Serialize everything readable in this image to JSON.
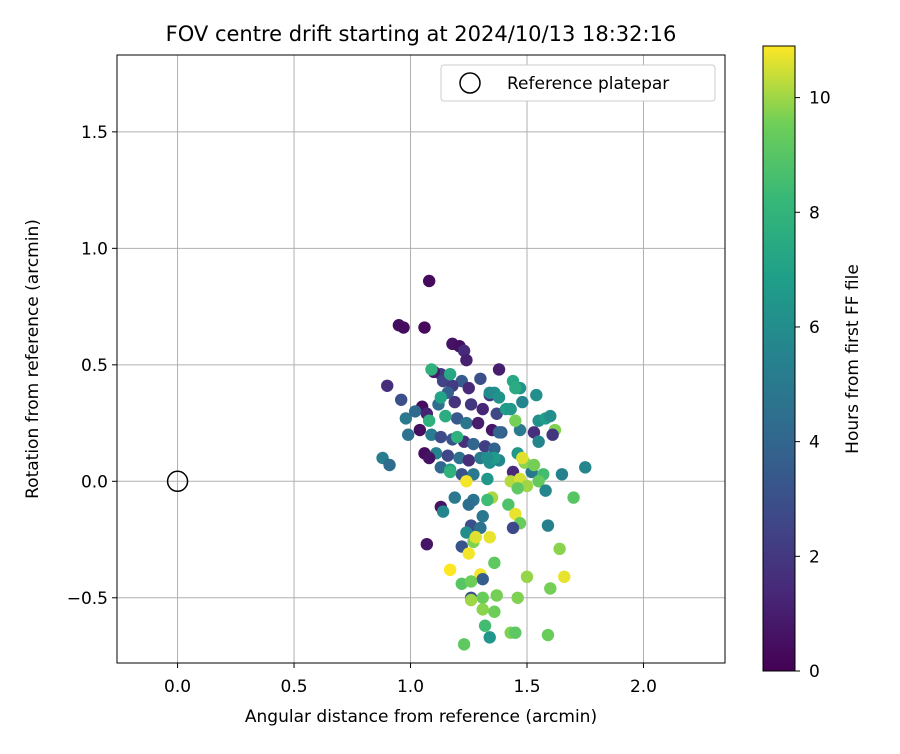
{
  "chart_data": {
    "type": "scatter",
    "title": "FOV centre drift starting at 2024/10/13 18:32:16",
    "xlabel": "Angular distance from reference (arcmin)",
    "ylabel": "Rotation from reference (arcmin)",
    "xlim": [
      -0.26,
      2.35
    ],
    "ylim": [
      -0.78,
      1.83
    ],
    "xticks": [
      0.0,
      0.5,
      1.0,
      1.5,
      2.0
    ],
    "xtick_labels": [
      "0.0",
      "0.5",
      "1.0",
      "1.5",
      "2.0"
    ],
    "yticks": [
      -0.5,
      0.0,
      0.5,
      1.0,
      1.5
    ],
    "ytick_labels": [
      "−0.5",
      "0.0",
      "0.5",
      "1.0",
      "1.5"
    ],
    "grid": true,
    "legend": {
      "position": "top-right",
      "entries": [
        "Reference platepar"
      ]
    },
    "reference_point": {
      "name": "Reference platepar",
      "x": 0.0,
      "y": 0.0
    },
    "colorbar": {
      "label": "Hours from first FF file",
      "range": [
        0,
        10.9
      ],
      "ticks": [
        0,
        2,
        4,
        6,
        8,
        10
      ],
      "tick_labels": [
        "0",
        "2",
        "4",
        "6",
        "8",
        "10"
      ],
      "colormap": "viridis"
    },
    "points": [
      [
        1.08,
        0.86,
        0.3
      ],
      [
        0.95,
        0.67,
        0.5
      ],
      [
        0.97,
        0.66,
        0.4
      ],
      [
        1.06,
        0.66,
        0.3
      ],
      [
        1.18,
        0.59,
        0.6
      ],
      [
        1.21,
        0.58,
        0.5
      ],
      [
        1.23,
        0.56,
        1.5
      ],
      [
        1.24,
        0.52,
        1.1
      ],
      [
        1.38,
        0.48,
        1.0
      ],
      [
        1.13,
        0.46,
        2.0
      ],
      [
        0.9,
        0.41,
        1.6
      ],
      [
        1.1,
        0.47,
        0.8
      ],
      [
        1.14,
        0.43,
        2.5
      ],
      [
        1.22,
        0.43,
        3.5
      ],
      [
        1.3,
        0.44,
        3.0
      ],
      [
        1.18,
        0.41,
        2.2
      ],
      [
        1.25,
        0.4,
        1.4
      ],
      [
        1.34,
        0.37,
        1.9
      ],
      [
        1.16,
        0.38,
        3.8
      ],
      [
        1.05,
        0.32,
        0.4
      ],
      [
        1.12,
        0.33,
        4.4
      ],
      [
        1.19,
        0.34,
        1.8
      ],
      [
        1.26,
        0.33,
        2.0
      ],
      [
        1.31,
        0.31,
        1.3
      ],
      [
        1.37,
        0.29,
        2.6
      ],
      [
        0.96,
        0.35,
        3.0
      ],
      [
        0.98,
        0.27,
        5.0
      ],
      [
        1.02,
        0.3,
        4.2
      ],
      [
        1.07,
        0.29,
        1.2
      ],
      [
        1.15,
        0.28,
        6.6
      ],
      [
        1.2,
        0.27,
        3.4
      ],
      [
        1.24,
        0.25,
        4.8
      ],
      [
        1.29,
        0.25,
        1.0
      ],
      [
        1.35,
        0.22,
        0.7
      ],
      [
        1.39,
        0.21,
        3.6
      ],
      [
        0.99,
        0.2,
        4.6
      ],
      [
        1.04,
        0.22,
        0.5
      ],
      [
        1.09,
        0.2,
        5.2
      ],
      [
        1.13,
        0.19,
        2.8
      ],
      [
        1.18,
        0.18,
        3.2
      ],
      [
        1.23,
        0.17,
        1.7
      ],
      [
        1.27,
        0.16,
        4.0
      ],
      [
        1.32,
        0.15,
        2.3
      ],
      [
        1.36,
        0.14,
        3.9
      ],
      [
        1.06,
        0.12,
        0.4
      ],
      [
        1.11,
        0.12,
        5.5
      ],
      [
        1.16,
        0.11,
        2.6
      ],
      [
        1.21,
        0.1,
        4.5
      ],
      [
        1.25,
        0.09,
        1.6
      ],
      [
        1.3,
        0.1,
        5.1
      ],
      [
        1.34,
        0.08,
        6.1
      ],
      [
        1.38,
        0.09,
        5.6
      ],
      [
        0.88,
        0.1,
        5.2
      ],
      [
        0.91,
        0.07,
        4.3
      ],
      [
        1.08,
        0.1,
        0.6
      ],
      [
        1.13,
        0.06,
        4.1
      ],
      [
        1.17,
        0.05,
        6.8
      ],
      [
        1.22,
        0.03,
        3.1
      ],
      [
        1.27,
        0.03,
        5.0
      ],
      [
        1.33,
        0.01,
        6.4
      ],
      [
        1.24,
        0.0,
        10.8
      ],
      [
        1.44,
        0.04,
        1.5
      ],
      [
        1.52,
        0.04,
        4.9
      ],
      [
        1.57,
        0.03,
        8.5
      ],
      [
        1.65,
        0.03,
        5.4
      ],
      [
        1.75,
        0.06,
        5.6
      ],
      [
        1.46,
        0.12,
        6.5
      ],
      [
        1.49,
        0.08,
        9.8
      ],
      [
        1.48,
        0.1,
        10.6
      ],
      [
        1.53,
        0.07,
        9.6
      ],
      [
        1.55,
        0.0,
        9.3
      ],
      [
        1.43,
        0.0,
        10.2
      ],
      [
        1.47,
        0.01,
        10.5
      ],
      [
        1.5,
        -0.02,
        10.0
      ],
      [
        1.46,
        -0.03,
        9.2
      ],
      [
        1.42,
        -0.1,
        8.8
      ],
      [
        1.58,
        -0.04,
        5.7
      ],
      [
        1.7,
        -0.07,
        9.0
      ],
      [
        1.35,
        -0.07,
        10.1
      ],
      [
        1.33,
        -0.08,
        8.4
      ],
      [
        1.27,
        -0.08,
        4.7
      ],
      [
        1.19,
        -0.07,
        5.0
      ],
      [
        1.25,
        -0.1,
        4.4
      ],
      [
        1.13,
        -0.11,
        0.6
      ],
      [
        1.14,
        -0.13,
        5.6
      ],
      [
        1.31,
        -0.15,
        4.9
      ],
      [
        1.45,
        -0.14,
        10.7
      ],
      [
        1.47,
        -0.18,
        9.4
      ],
      [
        1.59,
        -0.19,
        5.3
      ],
      [
        1.44,
        -0.2,
        2.7
      ],
      [
        1.07,
        -0.27,
        0.7
      ],
      [
        1.22,
        -0.28,
        3.2
      ],
      [
        1.26,
        -0.19,
        3.0
      ],
      [
        1.3,
        -0.2,
        4.6
      ],
      [
        1.24,
        -0.22,
        6.0
      ],
      [
        1.27,
        -0.26,
        9.7
      ],
      [
        1.28,
        -0.24,
        10.6
      ],
      [
        1.34,
        -0.24,
        10.7
      ],
      [
        1.25,
        -0.31,
        10.8
      ],
      [
        1.17,
        -0.38,
        10.9
      ],
      [
        1.3,
        -0.4,
        10.8
      ],
      [
        1.31,
        -0.42,
        3.6
      ],
      [
        1.36,
        -0.35,
        9.2
      ],
      [
        1.22,
        -0.44,
        9.0
      ],
      [
        1.26,
        -0.43,
        9.5
      ],
      [
        1.26,
        -0.5,
        3.0
      ],
      [
        1.31,
        -0.5,
        9.4
      ],
      [
        1.37,
        -0.49,
        9.6
      ],
      [
        1.26,
        -0.51,
        10.0
      ],
      [
        1.31,
        -0.55,
        9.8
      ],
      [
        1.36,
        -0.56,
        9.5
      ],
      [
        1.32,
        -0.62,
        8.5
      ],
      [
        1.34,
        -0.67,
        6.4
      ],
      [
        1.43,
        -0.65,
        9.7
      ],
      [
        1.45,
        -0.65,
        9.1
      ],
      [
        1.23,
        -0.7,
        9.2
      ],
      [
        1.46,
        -0.5,
        9.7
      ],
      [
        1.5,
        -0.41,
        9.9
      ],
      [
        1.6,
        -0.46,
        9.6
      ],
      [
        1.64,
        -0.29,
        9.8
      ],
      [
        1.66,
        -0.41,
        10.7
      ],
      [
        1.59,
        -0.66,
        9.4
      ],
      [
        1.47,
        0.4,
        6.3
      ],
      [
        1.44,
        0.43,
        7.3
      ],
      [
        1.45,
        0.4,
        7.5
      ],
      [
        1.41,
        0.31,
        6.8
      ],
      [
        1.43,
        0.31,
        6.5
      ],
      [
        1.48,
        0.34,
        5.6
      ],
      [
        1.54,
        0.37,
        6.1
      ],
      [
        1.55,
        0.26,
        6.2
      ],
      [
        1.58,
        0.27,
        6.8
      ],
      [
        1.6,
        0.28,
        6.1
      ],
      [
        1.62,
        0.22,
        9.7
      ],
      [
        1.61,
        0.2,
        2.0
      ],
      [
        1.53,
        0.21,
        1.7
      ],
      [
        1.55,
        0.17,
        5.6
      ],
      [
        1.47,
        0.22,
        5.0
      ],
      [
        1.45,
        0.26,
        9.6
      ],
      [
        1.36,
        0.38,
        6.2
      ],
      [
        1.34,
        0.38,
        5.9
      ],
      [
        1.38,
        0.36,
        6.3
      ],
      [
        1.17,
        0.46,
        7.3
      ],
      [
        1.09,
        0.48,
        7.8
      ],
      [
        1.13,
        0.36,
        7.1
      ],
      [
        1.15,
        0.28,
        7.6
      ],
      [
        1.2,
        0.19,
        7.9
      ],
      [
        1.08,
        0.26,
        7.8
      ],
      [
        1.17,
        0.04,
        7.9
      ],
      [
        1.36,
        0.1,
        6.6
      ],
      [
        1.38,
        0.21,
        4.0
      ],
      [
        1.33,
        0.1,
        6.1
      ]
    ]
  }
}
